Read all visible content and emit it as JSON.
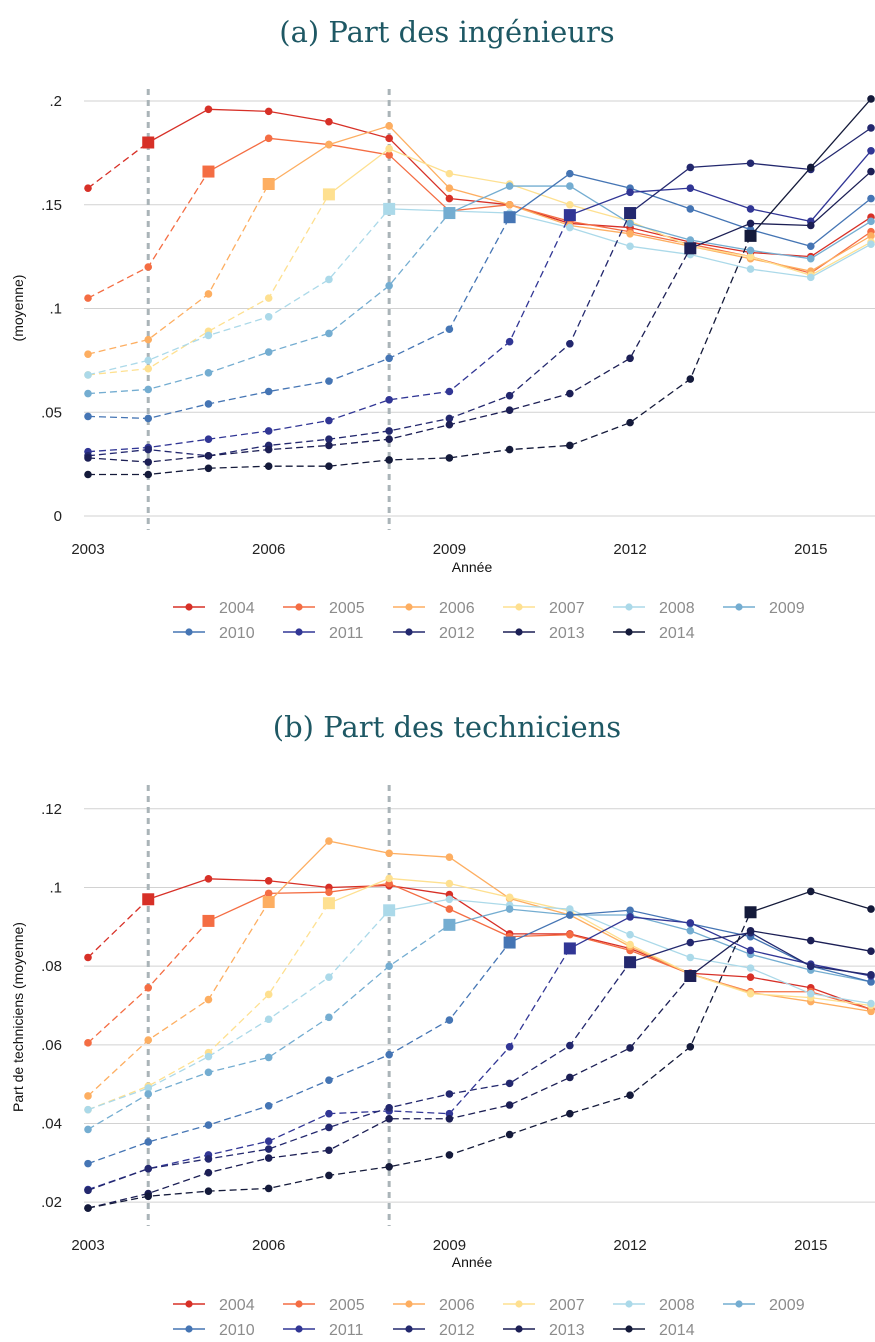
{
  "colors": {
    "2004": "#d73027",
    "2005": "#f46d43",
    "2006": "#fdae61",
    "2007": "#fee090",
    "2008": "#abd9e9",
    "2009": "#74add1",
    "2010": "#4575b4",
    "2011": "#313695",
    "2012": "#23286e",
    "2013": "#1c1f55",
    "2014": "#141a3a"
  },
  "chart_data": [
    {
      "type": "line",
      "title": "(a) Part des ingénieurs",
      "xlabel": "Année",
      "ylabel": "(moyenne)",
      "xticks": [
        2003,
        2006,
        2009,
        2012,
        2015
      ],
      "yticks": [
        {
          "v": 0,
          "label": "0"
        },
        {
          "v": 0.05,
          "label": ".05"
        },
        {
          "v": 0.1,
          "label": ".1"
        },
        {
          "v": 0.15,
          "label": ".15"
        },
        {
          "v": 0.2,
          "label": ".2"
        }
      ],
      "xlim": [
        2003,
        2016
      ],
      "ylim": [
        0,
        0.2
      ],
      "vlines": [
        2004,
        2008
      ],
      "grid": true,
      "legend_position": "bottom",
      "series": [
        {
          "name": "2004",
          "x": [
            2003,
            2004,
            2005,
            2006,
            2007,
            2008,
            2009,
            2010,
            2011,
            2012,
            2013,
            2014,
            2015,
            2016
          ],
          "y": [
            0.158,
            0.18,
            0.196,
            0.195,
            0.19,
            0.182,
            0.153,
            0.15,
            0.141,
            0.139,
            0.132,
            0.127,
            0.125,
            0.144
          ]
        },
        {
          "name": "2005",
          "x": [
            2003,
            2004,
            2005,
            2006,
            2007,
            2008,
            2009,
            2010,
            2011,
            2012,
            2013,
            2014,
            2015,
            2016
          ],
          "y": [
            0.105,
            0.12,
            0.166,
            0.182,
            0.179,
            0.174,
            0.147,
            0.15,
            0.142,
            0.137,
            0.131,
            0.125,
            0.117,
            0.137
          ]
        },
        {
          "name": "2006",
          "x": [
            2003,
            2004,
            2005,
            2006,
            2007,
            2008,
            2009,
            2010,
            2011,
            2012,
            2013,
            2014,
            2015,
            2016
          ],
          "y": [
            0.078,
            0.085,
            0.107,
            0.16,
            0.179,
            0.188,
            0.158,
            0.15,
            0.14,
            0.136,
            0.13,
            0.124,
            0.118,
            0.135
          ]
        },
        {
          "name": "2007",
          "x": [
            2003,
            2004,
            2005,
            2006,
            2007,
            2008,
            2009,
            2010,
            2011,
            2012,
            2013,
            2014,
            2015,
            2016
          ],
          "y": [
            0.068,
            0.071,
            0.089,
            0.105,
            0.155,
            0.177,
            0.165,
            0.16,
            0.15,
            0.142,
            0.13,
            0.125,
            0.116,
            0.132
          ]
        },
        {
          "name": "2008",
          "x": [
            2003,
            2004,
            2005,
            2006,
            2007,
            2008,
            2009,
            2010,
            2011,
            2012,
            2013,
            2014,
            2015,
            2016
          ],
          "y": [
            0.068,
            0.075,
            0.087,
            0.096,
            0.114,
            0.148,
            0.147,
            0.146,
            0.139,
            0.13,
            0.126,
            0.119,
            0.115,
            0.131
          ]
        },
        {
          "name": "2009",
          "x": [
            2003,
            2004,
            2005,
            2006,
            2007,
            2008,
            2009,
            2010,
            2011,
            2012,
            2013,
            2014,
            2015,
            2016
          ],
          "y": [
            0.059,
            0.061,
            0.069,
            0.079,
            0.088,
            0.111,
            0.146,
            0.159,
            0.159,
            0.141,
            0.133,
            0.128,
            0.124,
            0.142
          ]
        },
        {
          "name": "2010",
          "x": [
            2003,
            2004,
            2005,
            2006,
            2007,
            2008,
            2009,
            2010,
            2011,
            2012,
            2013,
            2014,
            2015,
            2016
          ],
          "y": [
            0.048,
            0.047,
            0.054,
            0.06,
            0.065,
            0.076,
            0.09,
            0.144,
            0.165,
            0.158,
            0.148,
            0.138,
            0.13,
            0.153
          ]
        },
        {
          "name": "2011",
          "x": [
            2003,
            2004,
            2005,
            2006,
            2007,
            2008,
            2009,
            2010,
            2011,
            2012,
            2013,
            2014,
            2015,
            2016
          ],
          "y": [
            0.031,
            0.033,
            0.037,
            0.041,
            0.046,
            0.056,
            0.06,
            0.084,
            0.145,
            0.156,
            0.158,
            0.148,
            0.142,
            0.176
          ]
        },
        {
          "name": "2012",
          "x": [
            2003,
            2004,
            2005,
            2006,
            2007,
            2008,
            2009,
            2010,
            2011,
            2012,
            2013,
            2014,
            2015,
            2016
          ],
          "y": [
            0.029,
            0.032,
            0.029,
            0.034,
            0.037,
            0.041,
            0.047,
            0.058,
            0.083,
            0.146,
            0.168,
            0.17,
            0.167,
            0.187
          ]
        },
        {
          "name": "2013",
          "x": [
            2003,
            2004,
            2005,
            2006,
            2007,
            2008,
            2009,
            2010,
            2011,
            2012,
            2013,
            2014,
            2015,
            2016
          ],
          "y": [
            0.028,
            0.026,
            0.029,
            0.032,
            0.034,
            0.037,
            0.044,
            0.051,
            0.059,
            0.076,
            0.129,
            0.141,
            0.14,
            0.166
          ]
        },
        {
          "name": "2014",
          "x": [
            2003,
            2004,
            2005,
            2006,
            2007,
            2008,
            2009,
            2010,
            2011,
            2012,
            2013,
            2014,
            2015,
            2016
          ],
          "y": [
            0.02,
            0.02,
            0.023,
            0.024,
            0.024,
            0.027,
            0.028,
            0.032,
            0.034,
            0.045,
            0.066,
            0.135,
            0.168,
            0.201
          ]
        }
      ]
    },
    {
      "type": "line",
      "title": "(b) Part des techniciens",
      "xlabel": "Année",
      "ylabel": "Part de techniciens (moyenne)",
      "xticks": [
        2003,
        2006,
        2009,
        2012,
        2015
      ],
      "yticks": [
        {
          "v": 0.02,
          "label": ".02"
        },
        {
          "v": 0.04,
          "label": ".04"
        },
        {
          "v": 0.06,
          "label": ".06"
        },
        {
          "v": 0.08,
          "label": ".08"
        },
        {
          "v": 0.1,
          "label": ".1"
        },
        {
          "v": 0.12,
          "label": ".12"
        }
      ],
      "xlim": [
        2003,
        2016
      ],
      "ylim": [
        0.0175,
        0.123
      ],
      "vlines": [
        2004,
        2008
      ],
      "grid": true,
      "legend_position": "bottom",
      "series": [
        {
          "name": "2004",
          "x": [
            2003,
            2004,
            2005,
            2006,
            2007,
            2008,
            2009,
            2010,
            2011,
            2012,
            2013,
            2014,
            2015,
            2016
          ],
          "y": [
            0.0822,
            0.097,
            0.1022,
            0.1017,
            0.1,
            0.1005,
            0.0982,
            0.0882,
            0.0882,
            0.0845,
            0.0782,
            0.0772,
            0.0745,
            0.069
          ]
        },
        {
          "name": "2005",
          "x": [
            2003,
            2004,
            2005,
            2006,
            2007,
            2008,
            2009,
            2010,
            2011,
            2012,
            2013,
            2014,
            2015,
            2016
          ],
          "y": [
            0.0605,
            0.0745,
            0.0915,
            0.0985,
            0.0988,
            0.101,
            0.0945,
            0.0875,
            0.088,
            0.084,
            0.078,
            0.0735,
            0.0735,
            0.069
          ]
        },
        {
          "name": "2006",
          "x": [
            2003,
            2004,
            2005,
            2006,
            2007,
            2008,
            2009,
            2010,
            2011,
            2012,
            2013,
            2014,
            2015,
            2016
          ],
          "y": [
            0.047,
            0.0612,
            0.0715,
            0.0963,
            0.1118,
            0.1087,
            0.1077,
            0.0972,
            0.093,
            0.085,
            0.078,
            0.0733,
            0.071,
            0.0685
          ]
        },
        {
          "name": "2007",
          "x": [
            2003,
            2004,
            2005,
            2006,
            2007,
            2008,
            2009,
            2010,
            2011,
            2012,
            2013,
            2014,
            2015,
            2016
          ],
          "y": [
            0.0435,
            0.0495,
            0.058,
            0.0728,
            0.096,
            0.1023,
            0.101,
            0.0975,
            0.094,
            0.0855,
            0.078,
            0.073,
            0.072,
            0.07
          ]
        },
        {
          "name": "2008",
          "x": [
            2003,
            2004,
            2005,
            2006,
            2007,
            2008,
            2009,
            2010,
            2011,
            2012,
            2013,
            2014,
            2015,
            2016
          ],
          "y": [
            0.0435,
            0.049,
            0.057,
            0.0665,
            0.0772,
            0.0942,
            0.097,
            0.0955,
            0.0945,
            0.088,
            0.0822,
            0.0795,
            0.073,
            0.0705
          ]
        },
        {
          "name": "2009",
          "x": [
            2003,
            2004,
            2005,
            2006,
            2007,
            2008,
            2009,
            2010,
            2011,
            2012,
            2013,
            2014,
            2015,
            2016
          ],
          "y": [
            0.0385,
            0.0475,
            0.053,
            0.0568,
            0.067,
            0.08,
            0.0905,
            0.0945,
            0.093,
            0.093,
            0.089,
            0.083,
            0.079,
            0.076
          ]
        },
        {
          "name": "2010",
          "x": [
            2003,
            2004,
            2005,
            2006,
            2007,
            2008,
            2009,
            2010,
            2011,
            2012,
            2013,
            2014,
            2015,
            2016
          ],
          "y": [
            0.0298,
            0.0353,
            0.0396,
            0.0445,
            0.051,
            0.0575,
            0.0663,
            0.086,
            0.093,
            0.0942,
            0.0908,
            0.0875,
            0.08,
            0.076
          ]
        },
        {
          "name": "2011",
          "x": [
            2003,
            2004,
            2005,
            2006,
            2007,
            2008,
            2009,
            2010,
            2011,
            2012,
            2013,
            2014,
            2015,
            2016
          ],
          "y": [
            0.0232,
            0.0285,
            0.032,
            0.0355,
            0.0425,
            0.0432,
            0.0425,
            0.0595,
            0.0845,
            0.0925,
            0.091,
            0.084,
            0.0805,
            0.0775
          ]
        },
        {
          "name": "2012",
          "x": [
            2003,
            2004,
            2005,
            2006,
            2007,
            2008,
            2009,
            2010,
            2011,
            2012,
            2013,
            2014,
            2015,
            2016
          ],
          "y": [
            0.023,
            0.0285,
            0.031,
            0.0335,
            0.039,
            0.044,
            0.0475,
            0.0502,
            0.0598,
            0.081,
            0.086,
            0.0885,
            0.08,
            0.0778
          ]
        },
        {
          "name": "2013",
          "x": [
            2003,
            2004,
            2005,
            2006,
            2007,
            2008,
            2009,
            2010,
            2011,
            2012,
            2013,
            2014,
            2015,
            2016
          ],
          "y": [
            0.0185,
            0.0222,
            0.0275,
            0.0312,
            0.0332,
            0.0412,
            0.0412,
            0.0447,
            0.0517,
            0.0592,
            0.0775,
            0.089,
            0.0865,
            0.0838
          ]
        },
        {
          "name": "2014",
          "x": [
            2003,
            2004,
            2005,
            2006,
            2007,
            2008,
            2009,
            2010,
            2011,
            2012,
            2013,
            2014,
            2015,
            2016
          ],
          "y": [
            0.0185,
            0.0215,
            0.0228,
            0.0235,
            0.0268,
            0.029,
            0.032,
            0.0372,
            0.0425,
            0.0472,
            0.0595,
            0.0937,
            0.099,
            0.0945
          ]
        }
      ]
    }
  ]
}
